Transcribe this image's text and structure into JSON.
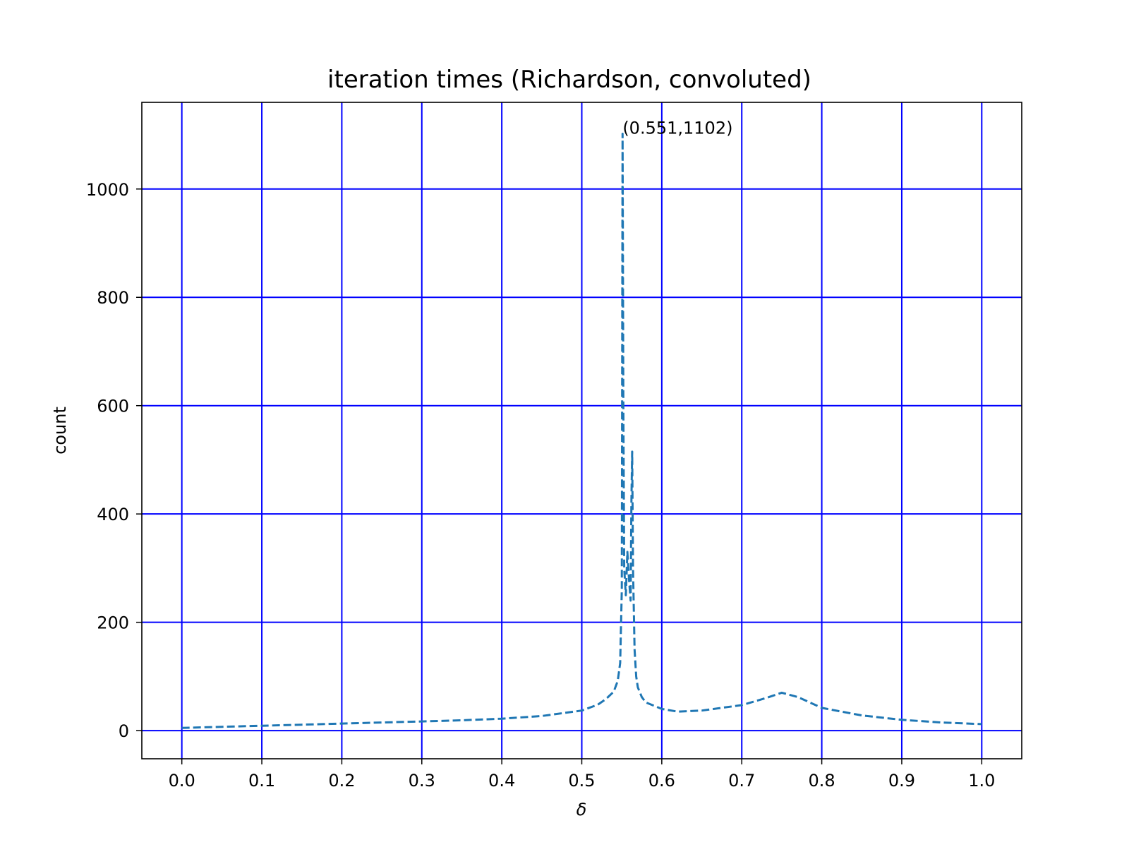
{
  "chart_data": {
    "type": "line",
    "title": "iteration times (Richardson, convoluted)",
    "xlabel": "δ",
    "ylabel": "count",
    "xlim": [
      -0.05,
      1.05
    ],
    "ylim": [
      -52,
      1160
    ],
    "xticks": [
      "0.0",
      "0.1",
      "0.2",
      "0.3",
      "0.4",
      "0.5",
      "0.6",
      "0.7",
      "0.8",
      "0.9",
      "1.0"
    ],
    "yticks": [
      "0",
      "200",
      "400",
      "600",
      "800",
      "1000"
    ],
    "grid": true,
    "grid_color": "#0000ff",
    "line_color": "#1f77b4",
    "line_style": "dashed",
    "annotation": {
      "text": "(0.551,1102)",
      "x": 0.551,
      "y": 1102
    },
    "series": [
      {
        "x": [
          0.0,
          0.05,
          0.1,
          0.15,
          0.2,
          0.25,
          0.3,
          0.35,
          0.4,
          0.45,
          0.5,
          0.52,
          0.53,
          0.54,
          0.545,
          0.548,
          0.55,
          0.551,
          0.552,
          0.553,
          0.555,
          0.557,
          0.559,
          0.561,
          0.562,
          0.563,
          0.564,
          0.566,
          0.568,
          0.57,
          0.575,
          0.58,
          0.6,
          0.62,
          0.65,
          0.7,
          0.73,
          0.75,
          0.77,
          0.8,
          0.85,
          0.9,
          0.95,
          1.0
        ],
        "y": [
          5,
          7,
          9,
          11,
          13,
          15,
          17,
          19,
          22,
          27,
          37,
          48,
          58,
          72,
          92,
          125,
          260,
          1102,
          600,
          300,
          250,
          330,
          280,
          240,
          420,
          515,
          300,
          150,
          100,
          80,
          62,
          52,
          40,
          35,
          37,
          47,
          60,
          70,
          62,
          42,
          28,
          20,
          15,
          12
        ]
      }
    ]
  }
}
